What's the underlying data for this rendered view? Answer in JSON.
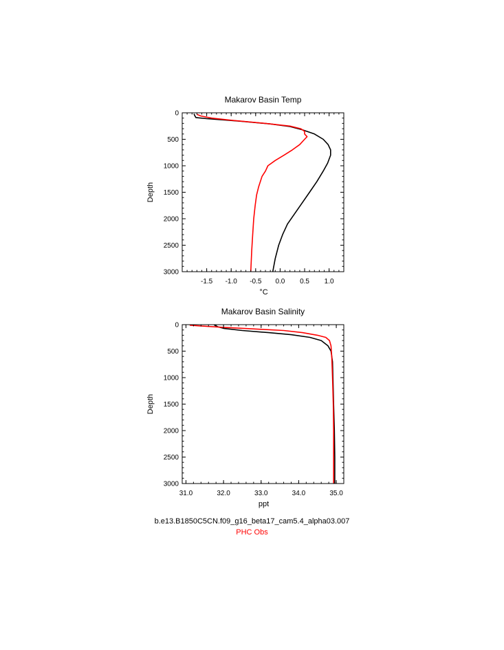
{
  "colors": {
    "model": "#000000",
    "obs": "#ff0000"
  },
  "legend": {
    "model_label": "b.e13.B1850C5CN.f09_g16_beta17_cam5.4_alpha03.007",
    "obs_label": "PHC Obs"
  },
  "chart_data": [
    {
      "type": "line",
      "title": "Makarov Basin Temp",
      "xlabel": "°C",
      "ylabel": "Depth",
      "xlim": [
        -2.0,
        1.3
      ],
      "ylim": [
        3000,
        0
      ],
      "y_inverted": true,
      "xticks": [
        -1.5,
        -1.0,
        -0.5,
        0.0,
        0.5,
        1.0
      ],
      "xtick_labels": [
        "-1.5",
        "-1.0",
        "-0.5",
        "0.0",
        "0.5",
        "1.0"
      ],
      "yticks": [
        0,
        500,
        1000,
        1500,
        2000,
        2500,
        3000
      ],
      "ytick_labels": [
        "0",
        "500",
        "1000",
        "1500",
        "2000",
        "2500",
        "3000"
      ],
      "series": [
        {
          "name": "b.e13.B1850C5CN.f09_g16_beta17_cam5.4_alpha03.007",
          "color": "#000000",
          "points": [
            [
              -1.76,
              20
            ],
            [
              -1.74,
              60
            ],
            [
              -1.72,
              90
            ],
            [
              -1.5,
              110
            ],
            [
              -0.8,
              160
            ],
            [
              -0.2,
              210
            ],
            [
              0.2,
              260
            ],
            [
              0.45,
              320
            ],
            [
              0.7,
              400
            ],
            [
              0.88,
              500
            ],
            [
              0.98,
              600
            ],
            [
              1.03,
              700
            ],
            [
              1.03,
              800
            ],
            [
              0.97,
              950
            ],
            [
              0.88,
              1100
            ],
            [
              0.75,
              1300
            ],
            [
              0.6,
              1500
            ],
            [
              0.45,
              1700
            ],
            [
              0.3,
              1900
            ],
            [
              0.15,
              2100
            ],
            [
              0.05,
              2300
            ],
            [
              -0.03,
              2500
            ],
            [
              -0.1,
              2750
            ],
            [
              -0.15,
              3000
            ]
          ]
        },
        {
          "name": "PHC Obs",
          "color": "#ff0000",
          "points": [
            [
              -1.7,
              30
            ],
            [
              -1.62,
              60
            ],
            [
              -1.4,
              100
            ],
            [
              -1.0,
              140
            ],
            [
              -0.3,
              200
            ],
            [
              0.2,
              250
            ],
            [
              0.42,
              300
            ],
            [
              0.5,
              350
            ],
            [
              0.5,
              400
            ],
            [
              0.55,
              450
            ],
            [
              0.5,
              500
            ],
            [
              0.4,
              600
            ],
            [
              0.25,
              700
            ],
            [
              0.08,
              800
            ],
            [
              -0.1,
              900
            ],
            [
              -0.25,
              1000
            ],
            [
              -0.3,
              1100
            ],
            [
              -0.37,
              1200
            ],
            [
              -0.44,
              1400
            ],
            [
              -0.48,
              1550
            ],
            [
              -0.51,
              1750
            ],
            [
              -0.54,
              2000
            ],
            [
              -0.56,
              2300
            ],
            [
              -0.58,
              2600
            ],
            [
              -0.6,
              3000
            ]
          ]
        }
      ]
    },
    {
      "type": "line",
      "title": "Makarov Basin Salinity",
      "xlabel": "ppt",
      "ylabel": "Depth",
      "xlim": [
        30.9,
        35.2
      ],
      "ylim": [
        3000,
        0
      ],
      "y_inverted": true,
      "xticks": [
        31.0,
        32.0,
        33.0,
        34.0,
        35.0
      ],
      "xtick_labels": [
        "31.0",
        "32.0",
        "33.0",
        "34.0",
        "35.0"
      ],
      "yticks": [
        0,
        500,
        1000,
        1500,
        2000,
        2500,
        3000
      ],
      "ytick_labels": [
        "0",
        "500",
        "1000",
        "1500",
        "2000",
        "2500",
        "3000"
      ],
      "series": [
        {
          "name": "b.e13.B1850C5CN.f09_g16_beta17_cam5.4_alpha03.007",
          "color": "#000000",
          "points": [
            [
              31.75,
              5
            ],
            [
              31.85,
              40
            ],
            [
              32.0,
              70
            ],
            [
              32.5,
              110
            ],
            [
              33.2,
              150
            ],
            [
              33.8,
              190
            ],
            [
              34.3,
              240
            ],
            [
              34.6,
              300
            ],
            [
              34.78,
              400
            ],
            [
              34.86,
              500
            ],
            [
              34.9,
              700
            ],
            [
              34.91,
              1000
            ],
            [
              34.93,
              1500
            ],
            [
              34.95,
              2000
            ],
            [
              34.96,
              2500
            ],
            [
              34.96,
              3000
            ]
          ]
        },
        {
          "name": "PHC Obs",
          "color": "#ff0000",
          "points": [
            [
              31.1,
              10
            ],
            [
              31.4,
              25
            ],
            [
              32.0,
              50
            ],
            [
              32.8,
              80
            ],
            [
              33.6,
              110
            ],
            [
              34.1,
              150
            ],
            [
              34.5,
              200
            ],
            [
              34.72,
              240
            ],
            [
              34.82,
              300
            ],
            [
              34.86,
              400
            ],
            [
              34.88,
              600
            ],
            [
              34.9,
              1000
            ],
            [
              34.92,
              1500
            ],
            [
              34.93,
              2000
            ],
            [
              34.93,
              2500
            ],
            [
              34.93,
              3000
            ]
          ]
        }
      ]
    }
  ]
}
